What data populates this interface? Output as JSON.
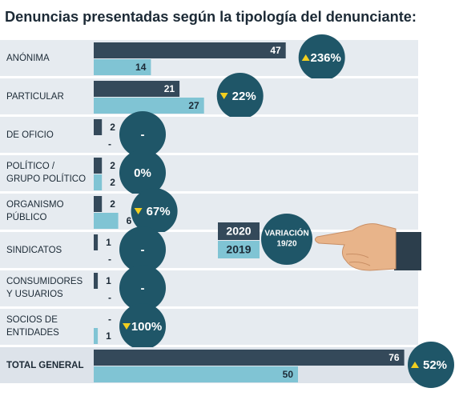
{
  "chart_data": {
    "type": "bar",
    "title": "Denuncias presentadas según la tipología del denunciante:",
    "categories": [
      [
        "ANÓNIMA"
      ],
      [
        "PARTICULAR"
      ],
      [
        "DE OFICIO"
      ],
      [
        "POLÍTICO /",
        "GRUPO POLÍTICO"
      ],
      [
        "ORGANISMO",
        "PÚBLICO"
      ],
      [
        "SINDICATOS"
      ],
      [
        "CONSUMIDORES",
        "Y USUARIOS"
      ],
      [
        "SOCIOS DE",
        "ENTIDADES"
      ],
      [
        "TOTAL GENERAL"
      ]
    ],
    "series": [
      {
        "name": "2020",
        "color": "#34495a",
        "values": [
          47,
          21,
          2,
          2,
          2,
          1,
          1,
          null,
          76
        ],
        "value_labels": [
          "47",
          "21",
          "2",
          "2",
          "2",
          "1",
          "1",
          "-",
          "76"
        ]
      },
      {
        "name": "2019",
        "color": "#80c4d4",
        "values": [
          14,
          27,
          null,
          2,
          6,
          null,
          null,
          1,
          50
        ],
        "value_labels": [
          "14",
          "27",
          "-",
          "2",
          "6",
          "-",
          "-",
          "1",
          "50"
        ]
      }
    ],
    "variation": {
      "label": [
        "VARIACIÓN",
        "19/20"
      ],
      "color": "#1f5668",
      "values": [
        236,
        -22,
        null,
        0,
        -67,
        null,
        null,
        -100,
        52
      ],
      "value_labels": [
        "236%",
        "22%",
        "-",
        "0%",
        "67%",
        "-",
        "-",
        "100%",
        "52%"
      ]
    }
  }
}
